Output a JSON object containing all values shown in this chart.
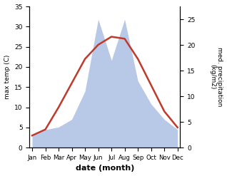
{
  "months": [
    "Jan",
    "Feb",
    "Mar",
    "Apr",
    "May",
    "Jun",
    "Jul",
    "Aug",
    "Sep",
    "Oct",
    "Nov",
    "Dec"
  ],
  "temperature": [
    3.0,
    4.5,
    10.0,
    16.0,
    22.0,
    25.5,
    27.5,
    27.0,
    22.0,
    15.5,
    9.0,
    5.0
  ],
  "precipitation": [
    2.5,
    3.5,
    4.0,
    5.5,
    11.0,
    25.0,
    17.0,
    25.0,
    13.0,
    8.5,
    5.5,
    3.5
  ],
  "temp_color": "#c0392b",
  "precip_color": "#b8c9e8",
  "ylabel_left": "max temp (C)",
  "ylabel_right": "med. precipitation\n(kg/m2)",
  "xlabel": "date (month)",
  "ylim_left": [
    0,
    35
  ],
  "ylim_right": [
    0,
    27.5
  ],
  "yticks_left": [
    0,
    5,
    10,
    15,
    20,
    25,
    30,
    35
  ],
  "yticks_right": [
    0,
    5,
    10,
    15,
    20,
    25
  ],
  "bg_color": "#ffffff"
}
